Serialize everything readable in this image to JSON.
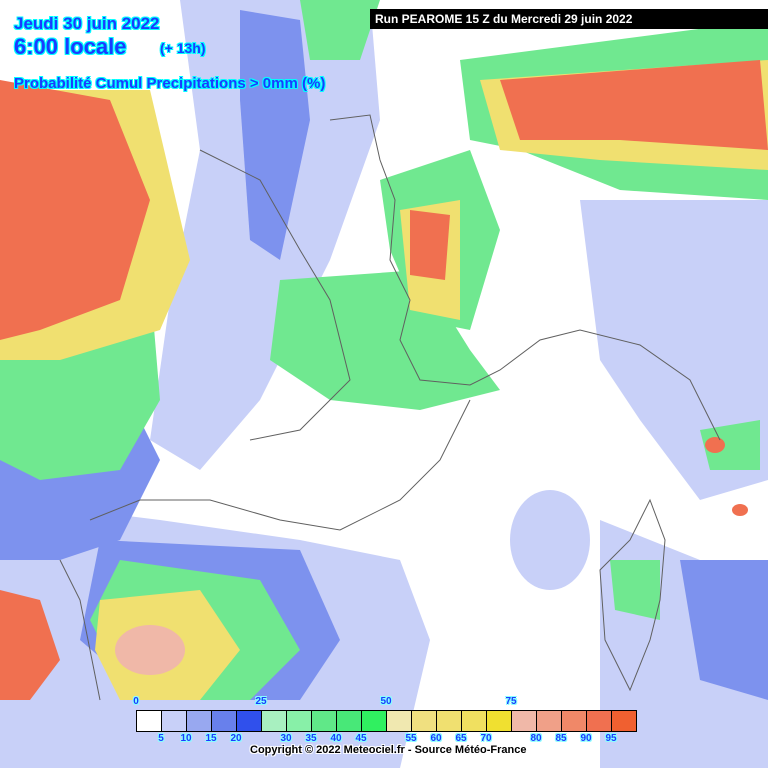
{
  "header": {
    "date": "Jeudi 30 juin 2022",
    "time": "6:00 locale",
    "lead": "(+ 13h)",
    "product": "Probabilité Cumul Precipitations > 0mm (%)"
  },
  "run_label": "Run PEAROME 15 Z du Mercredi 29 juin 2022",
  "legend": {
    "colors": [
      "#ffffff",
      "#c8d0f8",
      "#98a8f0",
      "#6880ec",
      "#3050ec",
      "#a8f0c0",
      "#88f0a8",
      "#60e888",
      "#48e878",
      "#30f060",
      "#f0e8b0",
      "#f0e080",
      "#f0e070",
      "#f0e060",
      "#f0e030",
      "#f0b8a8",
      "#f0a088",
      "#f08868",
      "#f07050",
      "#f06030"
    ],
    "top_labels": [
      "0",
      "25",
      "50",
      "75"
    ],
    "bottom_labels": [
      "5",
      "10",
      "15",
      "20",
      "30",
      "35",
      "40",
      "45",
      "55",
      "60",
      "65",
      "70",
      "80",
      "85",
      "90",
      "95"
    ]
  },
  "copyright": "Copyright © 2022 Meteociel.fr - Source Météo-France"
}
